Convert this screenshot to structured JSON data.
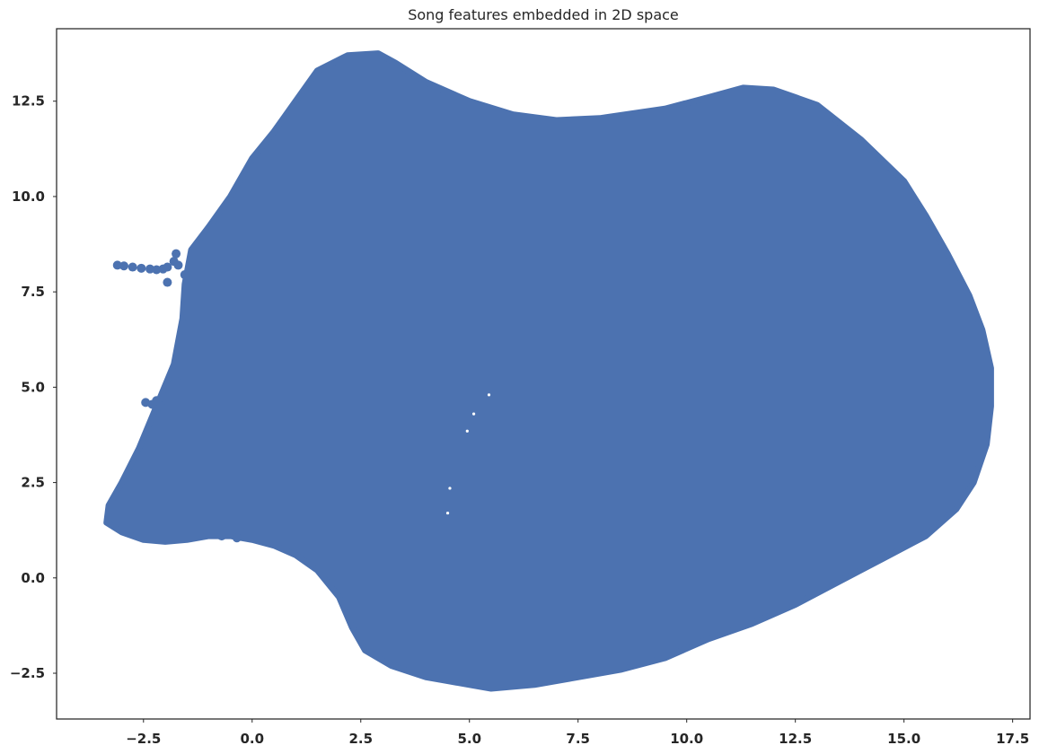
{
  "chart_data": {
    "type": "scatter",
    "title": "Song features embedded in 2D space",
    "xlabel": "",
    "ylabel": "",
    "xlim": [
      -4.5,
      17.9
    ],
    "ylim": [
      -3.7,
      14.4
    ],
    "grid": false,
    "legend": "none",
    "marker_color": "#4c72b0",
    "x_ticks": [
      {
        "value": -2.5,
        "label": "−2.5"
      },
      {
        "value": 0.0,
        "label": "0.0"
      },
      {
        "value": 2.5,
        "label": "2.5"
      },
      {
        "value": 5.0,
        "label": "5.0"
      },
      {
        "value": 7.5,
        "label": "7.5"
      },
      {
        "value": 10.0,
        "label": "10.0"
      },
      {
        "value": 12.5,
        "label": "12.5"
      },
      {
        "value": 15.0,
        "label": "15.0"
      },
      {
        "value": 17.5,
        "label": "17.5"
      }
    ],
    "y_ticks": [
      {
        "value": -2.5,
        "label": "−2.5"
      },
      {
        "value": 0.0,
        "label": "0.0"
      },
      {
        "value": 2.5,
        "label": "2.5"
      },
      {
        "value": 5.0,
        "label": "5.0"
      },
      {
        "value": 7.5,
        "label": "7.5"
      },
      {
        "value": 10.0,
        "label": "10.0"
      },
      {
        "value": 12.5,
        "label": "12.5"
      }
    ],
    "main_cloud_outline": [
      [
        -3.35,
        1.45
      ],
      [
        -3.0,
        1.2
      ],
      [
        -2.5,
        1.0
      ],
      [
        -2.0,
        0.95
      ],
      [
        -1.5,
        1.0
      ],
      [
        -1.0,
        1.1
      ],
      [
        -0.5,
        1.1
      ],
      [
        0.0,
        1.0
      ],
      [
        0.5,
        0.85
      ],
      [
        1.0,
        0.6
      ],
      [
        1.5,
        0.2
      ],
      [
        2.0,
        -0.5
      ],
      [
        2.3,
        -1.3
      ],
      [
        2.6,
        -1.9
      ],
      [
        3.2,
        -2.3
      ],
      [
        4.0,
        -2.6
      ],
      [
        5.0,
        -2.8
      ],
      [
        5.5,
        -2.9
      ],
      [
        6.5,
        -2.8
      ],
      [
        7.5,
        -2.6
      ],
      [
        8.5,
        -2.4
      ],
      [
        9.5,
        -2.1
      ],
      [
        10.5,
        -1.6
      ],
      [
        11.5,
        -1.2
      ],
      [
        12.5,
        -0.7
      ],
      [
        13.5,
        -0.1
      ],
      [
        14.5,
        0.5
      ],
      [
        15.5,
        1.1
      ],
      [
        16.2,
        1.8
      ],
      [
        16.6,
        2.5
      ],
      [
        16.9,
        3.5
      ],
      [
        17.0,
        4.5
      ],
      [
        17.0,
        5.5
      ],
      [
        16.8,
        6.5
      ],
      [
        16.5,
        7.4
      ],
      [
        16.0,
        8.5
      ],
      [
        15.5,
        9.5
      ],
      [
        15.0,
        10.4
      ],
      [
        14.0,
        11.5
      ],
      [
        13.0,
        12.4
      ],
      [
        12.0,
        12.8
      ],
      [
        11.3,
        12.85
      ],
      [
        10.5,
        12.6
      ],
      [
        9.5,
        12.3
      ],
      [
        8.0,
        12.05
      ],
      [
        7.0,
        12.0
      ],
      [
        6.0,
        12.15
      ],
      [
        5.0,
        12.5
      ],
      [
        4.0,
        13.0
      ],
      [
        3.3,
        13.5
      ],
      [
        2.9,
        13.75
      ],
      [
        2.2,
        13.7
      ],
      [
        1.5,
        13.3
      ],
      [
        1.0,
        12.5
      ],
      [
        0.5,
        11.7
      ],
      [
        0.0,
        11.0
      ],
      [
        -0.5,
        10.0
      ],
      [
        -1.0,
        9.2
      ],
      [
        -1.4,
        8.6
      ],
      [
        -1.55,
        7.7
      ],
      [
        -1.6,
        6.8
      ],
      [
        -1.8,
        5.6
      ],
      [
        -2.2,
        4.5
      ],
      [
        -2.6,
        3.4
      ],
      [
        -3.0,
        2.5
      ],
      [
        -3.3,
        1.9
      ]
    ],
    "outlier_points": [
      [
        -3.1,
        8.2
      ],
      [
        -2.95,
        8.18
      ],
      [
        -2.75,
        8.15
      ],
      [
        -2.55,
        8.12
      ],
      [
        -2.35,
        8.1
      ],
      [
        -2.2,
        8.08
      ],
      [
        -2.05,
        8.1
      ],
      [
        -1.95,
        8.15
      ],
      [
        -1.8,
        8.3
      ],
      [
        -1.75,
        8.5
      ],
      [
        -1.7,
        8.2
      ],
      [
        -1.55,
        7.95
      ],
      [
        -1.95,
        7.75
      ],
      [
        -2.45,
        4.6
      ],
      [
        -2.3,
        4.55
      ],
      [
        -2.2,
        4.65
      ],
      [
        -2.1,
        4.5
      ],
      [
        -1.75,
        5.15
      ],
      [
        -0.7,
        1.1
      ],
      [
        -0.35,
        1.05
      ]
    ],
    "gaps": [
      [
        5.45,
        4.8
      ],
      [
        4.95,
        3.85
      ],
      [
        4.55,
        2.35
      ],
      [
        4.5,
        1.7
      ],
      [
        5.1,
        4.3
      ]
    ]
  }
}
